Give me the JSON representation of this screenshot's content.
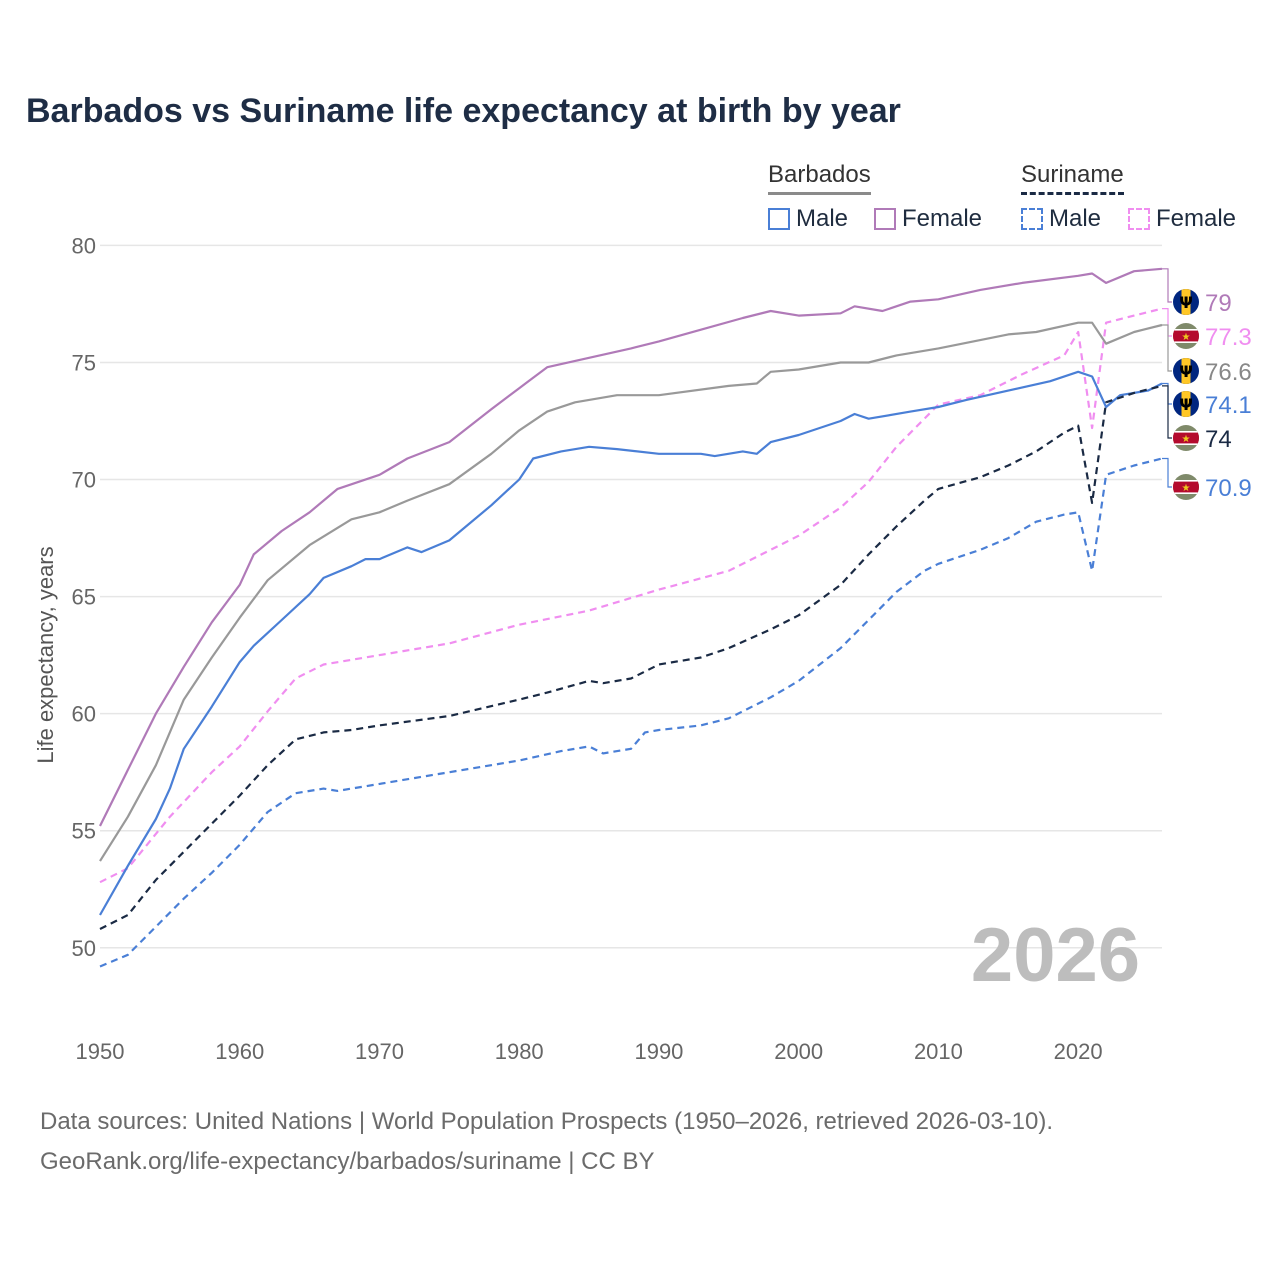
{
  "title": "Barbados vs Suriname life expectancy at birth by year",
  "watermark_year": "2026",
  "footer": {
    "line1": "Data sources: United Nations | World Population Prospects (1950–2026, retrieved 2026-03-10).",
    "line2": "GeoRank.org/life-expectancy/barbados/suriname | CC BY"
  },
  "legend": {
    "barbados_title": "Barbados",
    "suriname_title": "Suriname",
    "male_label": "Male",
    "female_label": "Female"
  },
  "colors": {
    "male": "#4a7fd6",
    "female": "#b07ab8",
    "suriname_female": "#f08ef0",
    "total_barbados": "#999999",
    "total_suriname": "#1a2a44",
    "grid": "#e6e6e6"
  },
  "chart_data": {
    "type": "line",
    "title": "Barbados vs Suriname life expectancy at birth by year",
    "xlabel": "",
    "ylabel": "Life expectancy, years",
    "xlim": [
      1950,
      2026
    ],
    "ylim": [
      47,
      81
    ],
    "x_ticks": [
      1950,
      1960,
      1970,
      1980,
      1990,
      2000,
      2010,
      2020
    ],
    "y_ticks": [
      50,
      55,
      60,
      65,
      70,
      75,
      80
    ],
    "grid": true,
    "legend_position": "top-right",
    "series": [
      {
        "name": "Barbados Female",
        "country": "Barbados",
        "sex": "Female",
        "dash": "solid",
        "color": "#b07ab8",
        "end_label": "79",
        "label_flag": "barbados",
        "points": [
          [
            1950,
            55.2
          ],
          [
            1952,
            57.6
          ],
          [
            1954,
            60.0
          ],
          [
            1956,
            62.0
          ],
          [
            1958,
            63.9
          ],
          [
            1960,
            65.5
          ],
          [
            1961,
            66.8
          ],
          [
            1963,
            67.8
          ],
          [
            1965,
            68.6
          ],
          [
            1967,
            69.6
          ],
          [
            1970,
            70.2
          ],
          [
            1972,
            70.9
          ],
          [
            1975,
            71.6
          ],
          [
            1978,
            73.0
          ],
          [
            1980,
            73.9
          ],
          [
            1982,
            74.8
          ],
          [
            1985,
            75.2
          ],
          [
            1988,
            75.6
          ],
          [
            1990,
            75.9
          ],
          [
            1993,
            76.4
          ],
          [
            1996,
            76.9
          ],
          [
            1998,
            77.2
          ],
          [
            2000,
            77.0
          ],
          [
            2003,
            77.1
          ],
          [
            2004,
            77.4
          ],
          [
            2006,
            77.2
          ],
          [
            2008,
            77.6
          ],
          [
            2010,
            77.7
          ],
          [
            2013,
            78.1
          ],
          [
            2016,
            78.4
          ],
          [
            2020,
            78.7
          ],
          [
            2021,
            78.8
          ],
          [
            2022,
            78.4
          ],
          [
            2024,
            78.9
          ],
          [
            2026,
            79.0
          ]
        ]
      },
      {
        "name": "Suriname Female",
        "country": "Suriname",
        "sex": "Female",
        "dash": "dashed",
        "color": "#f08ef0",
        "end_label": "77.3",
        "label_flag": "suriname",
        "points": [
          [
            1950,
            52.8
          ],
          [
            1952,
            53.4
          ],
          [
            1955,
            55.6
          ],
          [
            1958,
            57.5
          ],
          [
            1960,
            58.6
          ],
          [
            1962,
            60.1
          ],
          [
            1964,
            61.5
          ],
          [
            1966,
            62.1
          ],
          [
            1970,
            62.5
          ],
          [
            1975,
            63.0
          ],
          [
            1980,
            63.8
          ],
          [
            1985,
            64.4
          ],
          [
            1990,
            65.3
          ],
          [
            1995,
            66.1
          ],
          [
            1998,
            67.0
          ],
          [
            2000,
            67.6
          ],
          [
            2003,
            68.8
          ],
          [
            2005,
            69.9
          ],
          [
            2007,
            71.4
          ],
          [
            2009,
            72.6
          ],
          [
            2010,
            73.2
          ],
          [
            2013,
            73.6
          ],
          [
            2016,
            74.5
          ],
          [
            2019,
            75.3
          ],
          [
            2020,
            76.3
          ],
          [
            2021,
            72.2
          ],
          [
            2022,
            76.7
          ],
          [
            2024,
            77.0
          ],
          [
            2026,
            77.3
          ]
        ]
      },
      {
        "name": "Barbados Total",
        "country": "Barbados",
        "sex": "Total",
        "dash": "solid",
        "color": "#999999",
        "end_label": "76.6",
        "label_flag": "barbados",
        "points": [
          [
            1950,
            53.7
          ],
          [
            1952,
            55.6
          ],
          [
            1954,
            57.8
          ],
          [
            1956,
            60.6
          ],
          [
            1958,
            62.4
          ],
          [
            1960,
            64.1
          ],
          [
            1962,
            65.7
          ],
          [
            1965,
            67.2
          ],
          [
            1968,
            68.3
          ],
          [
            1970,
            68.6
          ],
          [
            1972,
            69.1
          ],
          [
            1975,
            69.8
          ],
          [
            1978,
            71.1
          ],
          [
            1980,
            72.1
          ],
          [
            1982,
            72.9
          ],
          [
            1984,
            73.3
          ],
          [
            1987,
            73.6
          ],
          [
            1990,
            73.6
          ],
          [
            1995,
            74.0
          ],
          [
            1997,
            74.1
          ],
          [
            1998,
            74.6
          ],
          [
            2000,
            74.7
          ],
          [
            2003,
            75.0
          ],
          [
            2005,
            75.0
          ],
          [
            2007,
            75.3
          ],
          [
            2010,
            75.6
          ],
          [
            2015,
            76.2
          ],
          [
            2017,
            76.3
          ],
          [
            2020,
            76.7
          ],
          [
            2021,
            76.7
          ],
          [
            2022,
            75.8
          ],
          [
            2024,
            76.3
          ],
          [
            2026,
            76.6
          ]
        ]
      },
      {
        "name": "Barbados Male",
        "country": "Barbados",
        "sex": "Male",
        "dash": "solid",
        "color": "#4a7fd6",
        "end_label": "74.1",
        "label_flag": "barbados",
        "points": [
          [
            1950,
            51.4
          ],
          [
            1952,
            53.5
          ],
          [
            1954,
            55.5
          ],
          [
            1955,
            56.8
          ],
          [
            1956,
            58.5
          ],
          [
            1958,
            60.3
          ],
          [
            1960,
            62.2
          ],
          [
            1961,
            62.9
          ],
          [
            1963,
            64.0
          ],
          [
            1965,
            65.1
          ],
          [
            1966,
            65.8
          ],
          [
            1968,
            66.3
          ],
          [
            1969,
            66.6
          ],
          [
            1970,
            66.6
          ],
          [
            1972,
            67.1
          ],
          [
            1973,
            66.9
          ],
          [
            1975,
            67.4
          ],
          [
            1978,
            68.9
          ],
          [
            1980,
            70.0
          ],
          [
            1981,
            70.9
          ],
          [
            1983,
            71.2
          ],
          [
            1985,
            71.4
          ],
          [
            1987,
            71.3
          ],
          [
            1990,
            71.1
          ],
          [
            1993,
            71.1
          ],
          [
            1994,
            71.0
          ],
          [
            1996,
            71.2
          ],
          [
            1997,
            71.1
          ],
          [
            1998,
            71.6
          ],
          [
            2000,
            71.9
          ],
          [
            2003,
            72.5
          ],
          [
            2004,
            72.8
          ],
          [
            2005,
            72.6
          ],
          [
            2008,
            72.9
          ],
          [
            2010,
            73.1
          ],
          [
            2012,
            73.4
          ],
          [
            2015,
            73.8
          ],
          [
            2018,
            74.2
          ],
          [
            2020,
            74.6
          ],
          [
            2021,
            74.4
          ],
          [
            2022,
            73.1
          ],
          [
            2023,
            73.6
          ],
          [
            2025,
            73.8
          ],
          [
            2026,
            74.1
          ]
        ]
      },
      {
        "name": "Suriname Total",
        "country": "Suriname",
        "sex": "Total",
        "dash": "dashed",
        "color": "#1a2a44",
        "end_label": "74",
        "label_flag": "suriname",
        "points": [
          [
            1950,
            50.8
          ],
          [
            1952,
            51.4
          ],
          [
            1954,
            52.9
          ],
          [
            1956,
            54.1
          ],
          [
            1958,
            55.3
          ],
          [
            1960,
            56.5
          ],
          [
            1962,
            57.8
          ],
          [
            1964,
            58.9
          ],
          [
            1966,
            59.2
          ],
          [
            1968,
            59.3
          ],
          [
            1970,
            59.5
          ],
          [
            1975,
            59.9
          ],
          [
            1980,
            60.6
          ],
          [
            1982,
            60.9
          ],
          [
            1985,
            61.4
          ],
          [
            1986,
            61.3
          ],
          [
            1988,
            61.5
          ],
          [
            1990,
            62.1
          ],
          [
            1993,
            62.4
          ],
          [
            1995,
            62.8
          ],
          [
            1998,
            63.6
          ],
          [
            2000,
            64.2
          ],
          [
            2003,
            65.5
          ],
          [
            2005,
            66.8
          ],
          [
            2007,
            68.0
          ],
          [
            2009,
            69.1
          ],
          [
            2010,
            69.6
          ],
          [
            2013,
            70.1
          ],
          [
            2015,
            70.6
          ],
          [
            2017,
            71.2
          ],
          [
            2019,
            72.0
          ],
          [
            2020,
            72.3
          ],
          [
            2021,
            69.0
          ],
          [
            2022,
            73.3
          ],
          [
            2024,
            73.7
          ],
          [
            2026,
            74.0
          ]
        ]
      },
      {
        "name": "Suriname Male",
        "country": "Suriname",
        "sex": "Male",
        "dash": "dashed",
        "color": "#4a7fd6",
        "end_label": "70.9",
        "label_flag": "suriname",
        "points": [
          [
            1950,
            49.2
          ],
          [
            1952,
            49.7
          ],
          [
            1954,
            50.9
          ],
          [
            1956,
            52.1
          ],
          [
            1958,
            53.2
          ],
          [
            1960,
            54.4
          ],
          [
            1962,
            55.8
          ],
          [
            1964,
            56.6
          ],
          [
            1966,
            56.8
          ],
          [
            1967,
            56.7
          ],
          [
            1970,
            57.0
          ],
          [
            1975,
            57.5
          ],
          [
            1980,
            58.0
          ],
          [
            1983,
            58.4
          ],
          [
            1985,
            58.6
          ],
          [
            1986,
            58.3
          ],
          [
            1988,
            58.5
          ],
          [
            1989,
            59.2
          ],
          [
            1990,
            59.3
          ],
          [
            1993,
            59.5
          ],
          [
            1995,
            59.8
          ],
          [
            1998,
            60.7
          ],
          [
            2000,
            61.4
          ],
          [
            2003,
            62.8
          ],
          [
            2005,
            64.0
          ],
          [
            2007,
            65.2
          ],
          [
            2009,
            66.1
          ],
          [
            2010,
            66.4
          ],
          [
            2013,
            67.0
          ],
          [
            2015,
            67.5
          ],
          [
            2017,
            68.2
          ],
          [
            2019,
            68.5
          ],
          [
            2020,
            68.6
          ],
          [
            2021,
            66.1
          ],
          [
            2022,
            70.2
          ],
          [
            2024,
            70.6
          ],
          [
            2026,
            70.9
          ]
        ]
      }
    ]
  }
}
